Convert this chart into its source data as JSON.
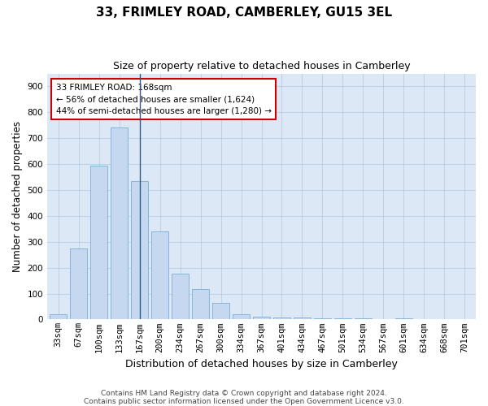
{
  "title": "33, FRIMLEY ROAD, CAMBERLEY, GU15 3EL",
  "subtitle": "Size of property relative to detached houses in Camberley",
  "xlabel": "Distribution of detached houses by size in Camberley",
  "ylabel": "Number of detached properties",
  "bar_labels": [
    "33sqm",
    "67sqm",
    "100sqm",
    "133sqm",
    "167sqm",
    "200sqm",
    "234sqm",
    "267sqm",
    "300sqm",
    "334sqm",
    "367sqm",
    "401sqm",
    "434sqm",
    "467sqm",
    "501sqm",
    "534sqm",
    "567sqm",
    "601sqm",
    "634sqm",
    "668sqm",
    "701sqm"
  ],
  "bar_values": [
    20,
    275,
    595,
    740,
    535,
    340,
    178,
    118,
    65,
    20,
    10,
    8,
    6,
    4,
    4,
    4,
    0,
    5,
    0,
    0,
    0
  ],
  "bar_color": "#c5d8f0",
  "bar_edge_color": "#7baed4",
  "highlight_bar_index": 4,
  "annotation_text": "33 FRIMLEY ROAD: 168sqm\n← 56% of detached houses are smaller (1,624)\n44% of semi-detached houses are larger (1,280) →",
  "annotation_box_color": "#ffffff",
  "annotation_border_color": "#cc0000",
  "ylim": [
    0,
    950
  ],
  "yticks": [
    0,
    100,
    200,
    300,
    400,
    500,
    600,
    700,
    800,
    900
  ],
  "footer_line1": "Contains HM Land Registry data © Crown copyright and database right 2024.",
  "footer_line2": "Contains public sector information licensed under the Open Government Licence v3.0.",
  "bg_color": "#ffffff",
  "plot_bg_color": "#dce8f5",
  "grid_color": "#b0c8e0",
  "title_fontsize": 11,
  "subtitle_fontsize": 9,
  "axis_label_fontsize": 8.5,
  "tick_fontsize": 7.5,
  "footer_fontsize": 6.5,
  "annotation_fontsize": 7.5
}
